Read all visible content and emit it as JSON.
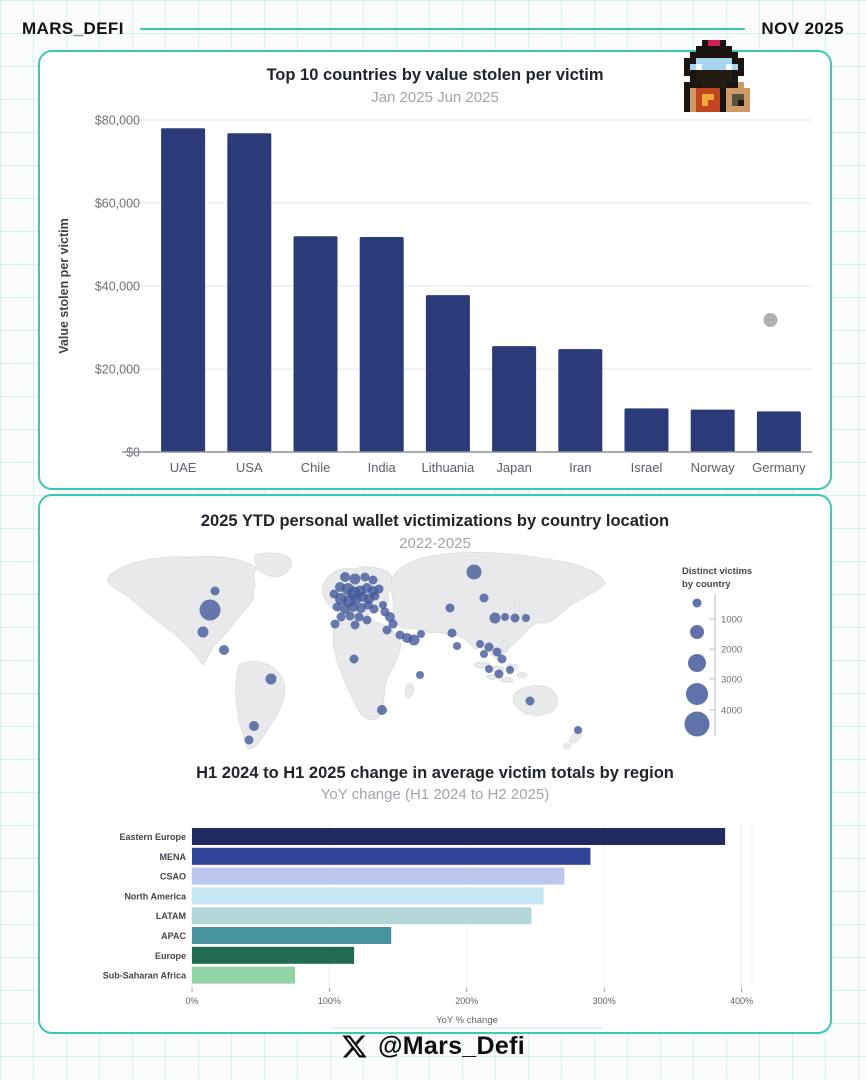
{
  "header": {
    "brand": "MARS_DEFI",
    "issue_date": "NOV 2025"
  },
  "footer": {
    "handle": "@Mars_Defi",
    "platform_icon": "x-twitter-icon"
  },
  "colors": {
    "accent_teal": "#3cc8b6",
    "bar_navy": "#2b3b7a",
    "bubble_blue": "#44599b",
    "map_land": "#e8e9eb",
    "outlier_gray": "#b1b1b1"
  },
  "chart_data": [
    {
      "type": "bar",
      "title": "Top 10 countries by value stolen per victim",
      "subtitle": "Jan 2025 Jun 2025",
      "ylabel": "Value stolen per victim",
      "categories": [
        "UAE",
        "USA",
        "Chile",
        "India",
        "Lithuania",
        "Japan",
        "Iran",
        "Israel",
        "Norway",
        "Germany"
      ],
      "values": [
        78000,
        76800,
        52000,
        51800,
        37800,
        25500,
        24800,
        10500,
        10200,
        9800
      ],
      "ylim": [
        0,
        80000
      ],
      "yticks": [
        {
          "value": 0,
          "label": "$0"
        },
        {
          "value": 20000,
          "label": "$20,000"
        },
        {
          "value": 40000,
          "label": "$40,000"
        },
        {
          "value": 60000,
          "label": "$60,000"
        },
        {
          "value": 80000,
          "label": "$80,000"
        }
      ],
      "bar_color": "#2b3b7a",
      "grid": true,
      "outlier_dot": {
        "x_frac": 0.91,
        "value": 31800,
        "color": "#b1b1b1"
      }
    },
    {
      "type": "scatter",
      "subtype": "bubble-map",
      "title": "2025 YTD personal wallet victimizations by country location",
      "subtitle": "2022-2025",
      "legend": {
        "title_line1": "Distinct victims",
        "title_line2": "by country",
        "ticks": [
          1000,
          2000,
          3000,
          4000
        ],
        "bubble_radii": [
          4.5,
          7,
          9,
          11,
          12.5
        ]
      },
      "bubble_color": "#44599b",
      "bubbles": [
        [
          113,
          63,
          10.5
        ],
        [
          118,
          44,
          4.5
        ],
        [
          106,
          85,
          5.5
        ],
        [
          127,
          103,
          5
        ],
        [
          174,
          132,
          5.5
        ],
        [
          157,
          179,
          5
        ],
        [
          152,
          193,
          4.5
        ],
        [
          248,
          30,
          5
        ],
        [
          258,
          32,
          5.5
        ],
        [
          268,
          30,
          4.5
        ],
        [
          276,
          33,
          4.5
        ],
        [
          243,
          40,
          5
        ],
        [
          251,
          42,
          6
        ],
        [
          257,
          46,
          6.5
        ],
        [
          263,
          44,
          5.5
        ],
        [
          270,
          41,
          5
        ],
        [
          276,
          44,
          5
        ],
        [
          282,
          42,
          4.5
        ],
        [
          237,
          47,
          4.5
        ],
        [
          244,
          52,
          6
        ],
        [
          252,
          54,
          6
        ],
        [
          259,
          52,
          5.5
        ],
        [
          266,
          50,
          5
        ],
        [
          272,
          52,
          5
        ],
        [
          278,
          49,
          4.5
        ],
        [
          240,
          60,
          4.5
        ],
        [
          248,
          62,
          5
        ],
        [
          256,
          60,
          5
        ],
        [
          264,
          61,
          5
        ],
        [
          271,
          58,
          4.5
        ],
        [
          277,
          62,
          4.5
        ],
        [
          286,
          58,
          4
        ],
        [
          244,
          70,
          4.5
        ],
        [
          253,
          69,
          4.5
        ],
        [
          262,
          70,
          4.5
        ],
        [
          270,
          73,
          4.5
        ],
        [
          288,
          65,
          4.5
        ],
        [
          293,
          70,
          5
        ],
        [
          296,
          77,
          4.5
        ],
        [
          290,
          83,
          4.5
        ],
        [
          258,
          78,
          4.5
        ],
        [
          238,
          77,
          4.5
        ],
        [
          377,
          25,
          7.5
        ],
        [
          353,
          61,
          4.5
        ],
        [
          387,
          51,
          4.5
        ],
        [
          303,
          88,
          4.5
        ],
        [
          310,
          91,
          5
        ],
        [
          317,
          93,
          5.5
        ],
        [
          324,
          87,
          4
        ],
        [
          257,
          112,
          4.5
        ],
        [
          285,
          163,
          5
        ],
        [
          323,
          128,
          4
        ],
        [
          355,
          86,
          4.5
        ],
        [
          360,
          99,
          4
        ],
        [
          398,
          71,
          5.5
        ],
        [
          408,
          70,
          4
        ],
        [
          418,
          71,
          4.5
        ],
        [
          429,
          71,
          4
        ],
        [
          383,
          97,
          4
        ],
        [
          392,
          100,
          4.5
        ],
        [
          387,
          107,
          4
        ],
        [
          400,
          105,
          4.5
        ],
        [
          405,
          112,
          4.5
        ],
        [
          392,
          122,
          4
        ],
        [
          402,
          127,
          4.5
        ],
        [
          413,
          123,
          4
        ],
        [
          433,
          154,
          4.5
        ],
        [
          481,
          183,
          4
        ]
      ]
    },
    {
      "type": "bar",
      "orientation": "horizontal",
      "title": "H1 2024 to H1 2025 change in average victim totals by region",
      "subtitle": "YoY change (H1 2024 to H2 2025)",
      "xlabel": "YoY % change",
      "categories": [
        "Eastern Europe",
        "MENA",
        "CSAO",
        "North America",
        "LATAM",
        "APAC",
        "Europe",
        "Sub-Saharan Africa"
      ],
      "values": [
        388,
        290,
        271,
        256,
        247,
        145,
        118,
        75
      ],
      "bar_colors": [
        "#202b60",
        "#2e4396",
        "#bcc7ed",
        "#c9e6f4",
        "#b3d6d9",
        "#46939e",
        "#226b53",
        "#90d4a8"
      ],
      "xlim": [
        0,
        400
      ],
      "xticks": [
        {
          "value": 0,
          "label": "0%"
        },
        {
          "value": 100,
          "label": "100%"
        },
        {
          "value": 200,
          "label": "200%"
        },
        {
          "value": 300,
          "label": "300%"
        },
        {
          "value": 400,
          "label": "400%"
        }
      ],
      "grid": true
    }
  ],
  "avatar": {
    "palette": {
      "K": "#1a1511",
      "R": "#cf2050",
      "B": "#a9d4ee",
      "W": "#eef7fc",
      "F": "#241b13",
      "T": "#cf9a66",
      "O": "#c2451d",
      "Y": "#efa83c",
      "G": "#56503f"
    },
    "pixels": [
      "....KRRK....",
      "...KKKKKK...",
      "..KKKKKKKK..",
      ".KKBBBBBBKK.",
      ".KBWBBBBWBK.",
      ".KKFFFFFFKK.",
      "..KFFFFFFK..",
      ".KKKFFFFKKT.",
      ".KTOOOOKTTTT",
      ".KTOYYOKTGGT",
      ".KTOYOOKTGKT",
      ".KTOOOOKTTTT"
    ]
  }
}
